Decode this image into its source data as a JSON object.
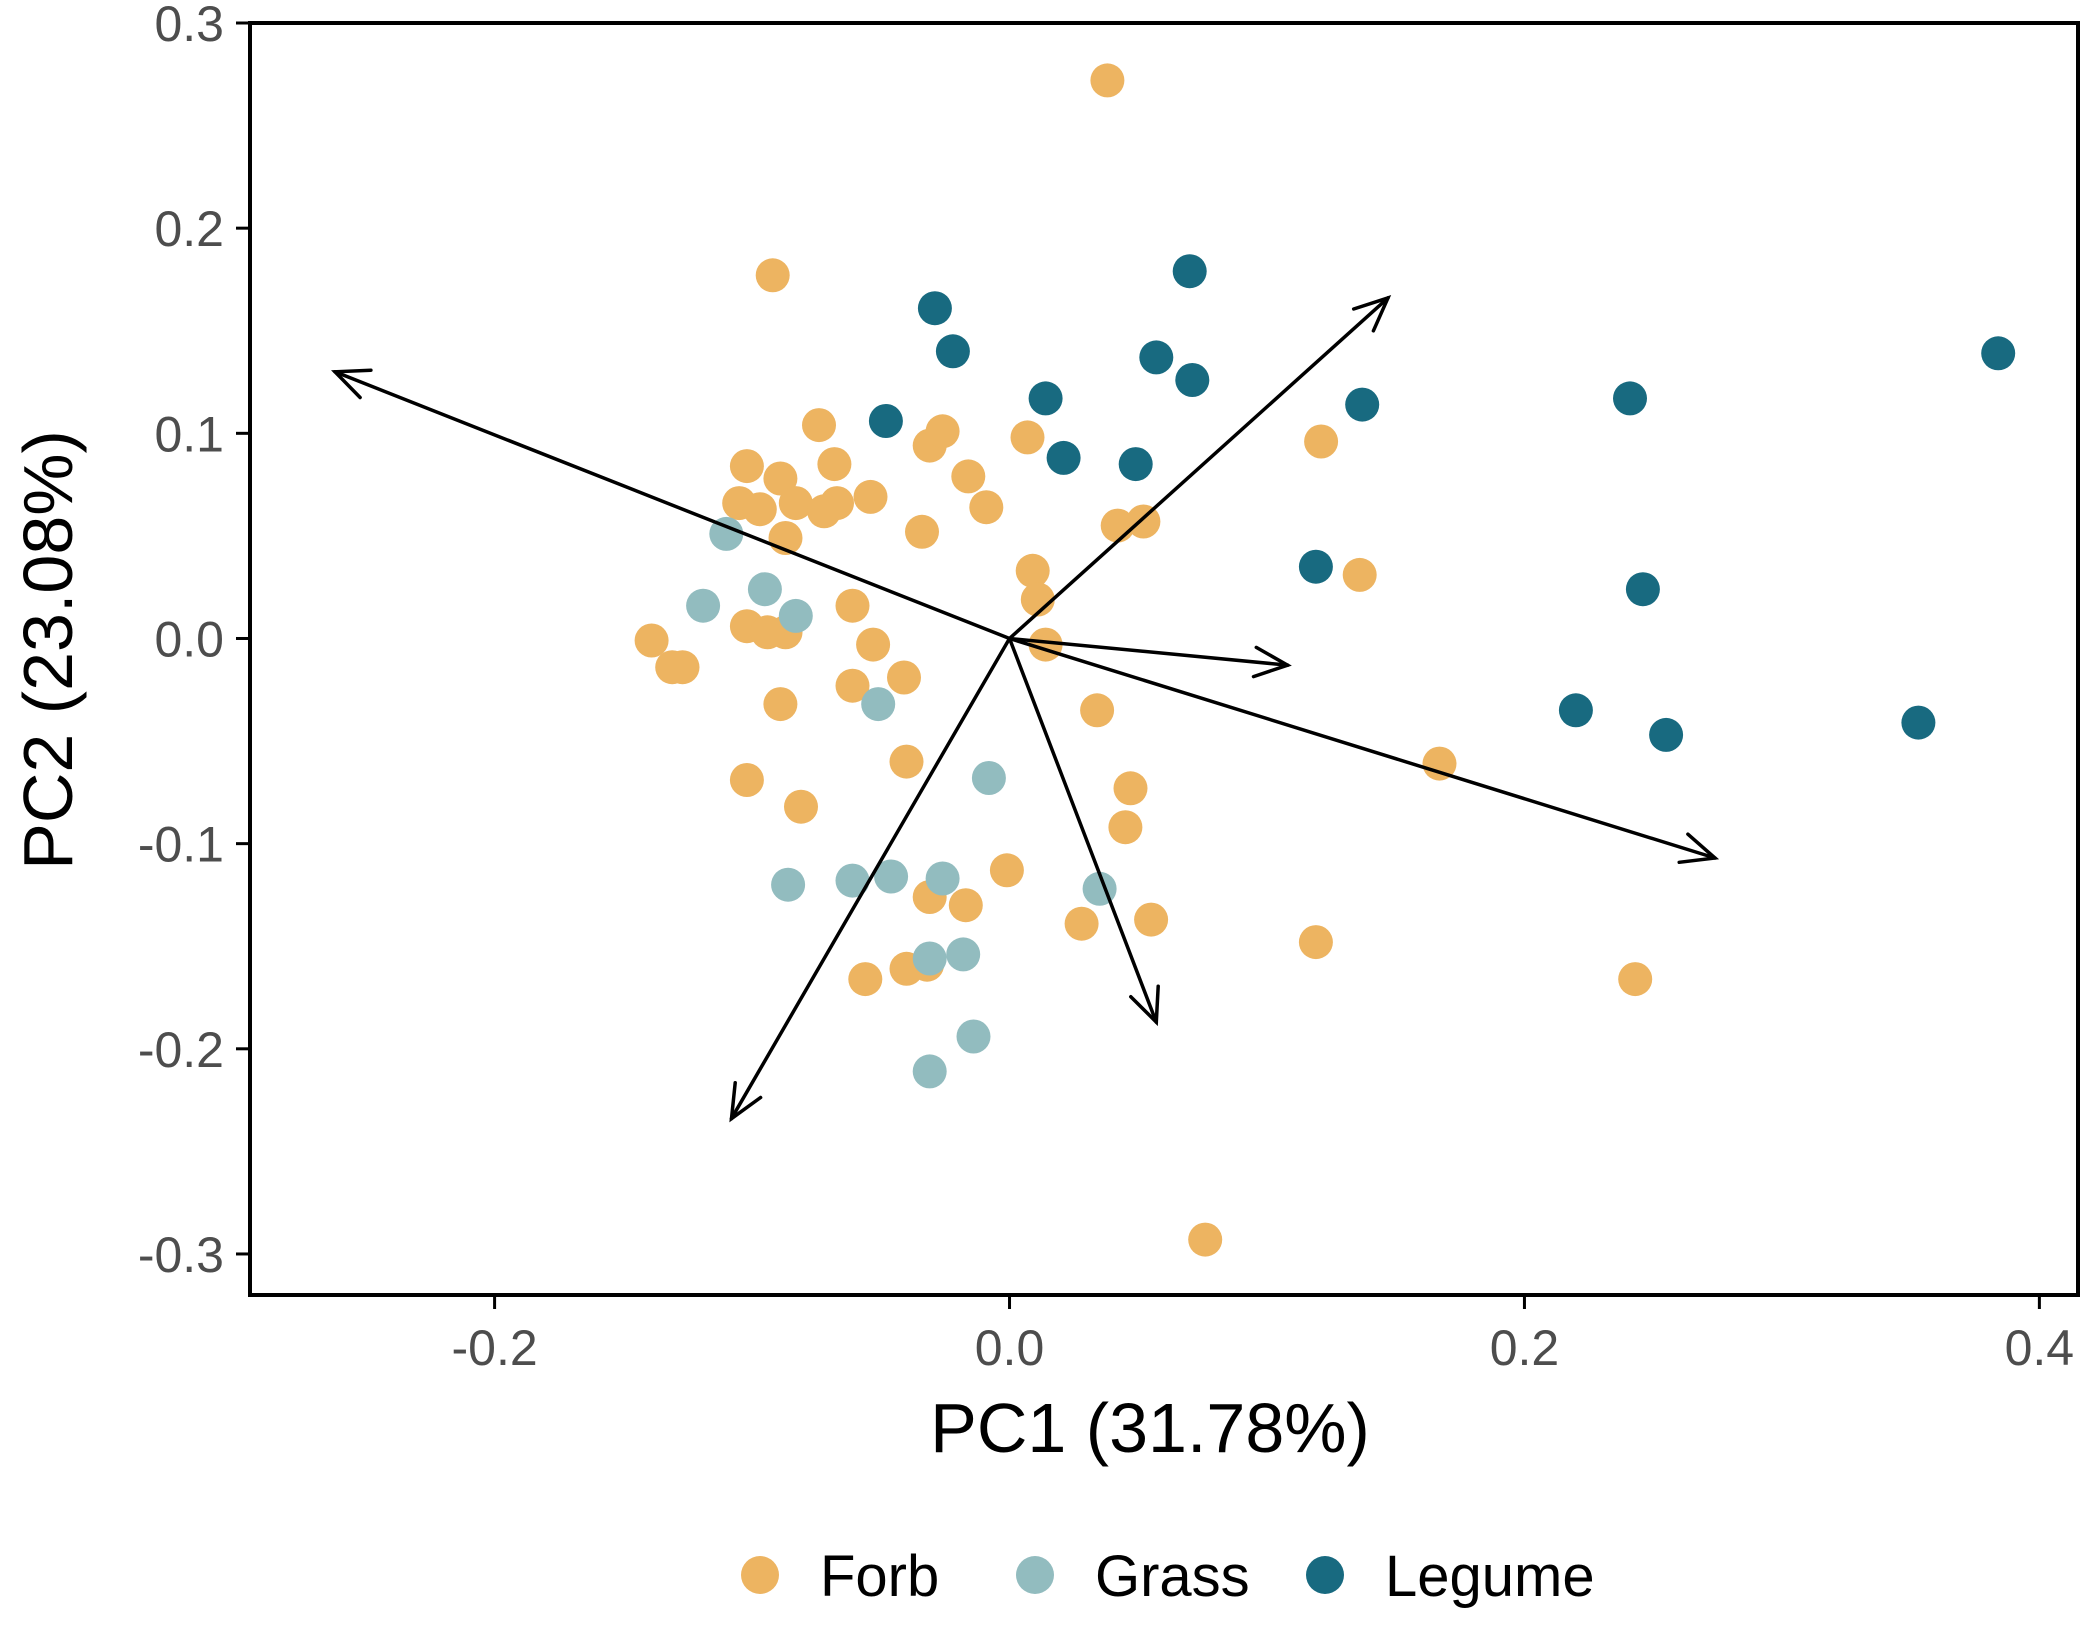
{
  "chart_data": {
    "type": "scatter",
    "xlabel": "PC1 (31.78%)",
    "ylabel": "PC2 (23.08%)",
    "xlim": [
      -0.295,
      0.415
    ],
    "ylim": [
      -0.32,
      0.3
    ],
    "x_ticks": [
      {
        "value": -0.2,
        "label": "-0.2"
      },
      {
        "value": 0.0,
        "label": "0.0"
      },
      {
        "value": 0.2,
        "label": "0.2"
      },
      {
        "value": 0.4,
        "label": "0.4"
      }
    ],
    "y_ticks": [
      {
        "value": 0.3,
        "label": "0.3"
      },
      {
        "value": 0.2,
        "label": "0.2"
      },
      {
        "value": 0.1,
        "label": "0.1"
      },
      {
        "value": 0.0,
        "label": "0.0"
      },
      {
        "value": -0.1,
        "label": "-0.1"
      },
      {
        "value": -0.2,
        "label": "-0.2"
      },
      {
        "value": -0.3,
        "label": "-0.3"
      }
    ],
    "grid": false,
    "legend_position": "bottom",
    "series": [
      {
        "name": "Forb",
        "color": "#EDB461",
        "points": [
          [
            0.038,
            0.272
          ],
          [
            -0.092,
            0.177
          ],
          [
            -0.074,
            0.104
          ],
          [
            -0.102,
            0.084
          ],
          [
            -0.089,
            0.078
          ],
          [
            -0.068,
            0.085
          ],
          [
            -0.031,
            0.094
          ],
          [
            -0.026,
            0.101
          ],
          [
            -0.016,
            0.079
          ],
          [
            -0.054,
            0.069
          ],
          [
            -0.067,
            0.066
          ],
          [
            -0.083,
            0.066
          ],
          [
            -0.105,
            0.066
          ],
          [
            -0.097,
            0.063
          ],
          [
            -0.072,
            0.062
          ],
          [
            -0.087,
            0.049
          ],
          [
            -0.034,
            0.052
          ],
          [
            -0.009,
            0.064
          ],
          [
            0.007,
            0.098
          ],
          [
            0.042,
            0.055
          ],
          [
            0.052,
            0.057
          ],
          [
            0.121,
            0.096
          ],
          [
            0.136,
            0.031
          ],
          [
            0.009,
            0.033
          ],
          [
            0.011,
            0.019
          ],
          [
            0.014,
            -0.003
          ],
          [
            -0.061,
            0.016
          ],
          [
            -0.053,
            -0.003
          ],
          [
            -0.102,
            0.006
          ],
          [
            -0.087,
            0.003
          ],
          [
            -0.094,
            0.003
          ],
          [
            -0.139,
            -0.001
          ],
          [
            -0.131,
            -0.014
          ],
          [
            -0.127,
            -0.014
          ],
          [
            -0.061,
            -0.023
          ],
          [
            -0.041,
            -0.019
          ],
          [
            -0.089,
            -0.032
          ],
          [
            0.034,
            -0.035
          ],
          [
            0.167,
            -0.061
          ],
          [
            -0.04,
            -0.06
          ],
          [
            -0.102,
            -0.069
          ],
          [
            -0.081,
            -0.082
          ],
          [
            0.047,
            -0.073
          ],
          [
            0.045,
            -0.092
          ],
          [
            -0.001,
            -0.113
          ],
          [
            -0.031,
            -0.126
          ],
          [
            -0.017,
            -0.13
          ],
          [
            0.028,
            -0.139
          ],
          [
            0.055,
            -0.137
          ],
          [
            0.119,
            -0.148
          ],
          [
            0.243,
            -0.166
          ],
          [
            -0.056,
            -0.166
          ],
          [
            -0.04,
            -0.161
          ],
          [
            -0.032,
            -0.159
          ],
          [
            0.076,
            -0.293
          ]
        ]
      },
      {
        "name": "Grass",
        "color": "#92BCBF",
        "points": [
          [
            -0.11,
            0.051
          ],
          [
            -0.095,
            0.024
          ],
          [
            -0.119,
            0.016
          ],
          [
            -0.083,
            0.011
          ],
          [
            -0.051,
            -0.032
          ],
          [
            -0.008,
            -0.068
          ],
          [
            -0.086,
            -0.12
          ],
          [
            -0.061,
            -0.118
          ],
          [
            -0.046,
            -0.116
          ],
          [
            -0.026,
            -0.117
          ],
          [
            0.035,
            -0.122
          ],
          [
            -0.031,
            -0.156
          ],
          [
            -0.018,
            -0.154
          ],
          [
            -0.014,
            -0.194
          ],
          [
            -0.031,
            -0.211
          ]
        ]
      },
      {
        "name": "Legume",
        "color": "#186A80",
        "points": [
          [
            -0.029,
            0.161
          ],
          [
            -0.022,
            0.14
          ],
          [
            0.07,
            0.179
          ],
          [
            0.057,
            0.137
          ],
          [
            0.071,
            0.126
          ],
          [
            0.014,
            0.117
          ],
          [
            -0.048,
            0.106
          ],
          [
            0.021,
            0.088
          ],
          [
            0.049,
            0.085
          ],
          [
            0.137,
            0.114
          ],
          [
            0.241,
            0.117
          ],
          [
            0.384,
            0.139
          ],
          [
            0.119,
            0.035
          ],
          [
            0.246,
            0.024
          ],
          [
            0.22,
            -0.035
          ],
          [
            0.255,
            -0.047
          ],
          [
            0.353,
            -0.041
          ]
        ]
      }
    ],
    "arrows": [
      {
        "x": -0.262,
        "y": 0.13
      },
      {
        "x": 0.147,
        "y": 0.166
      },
      {
        "x": 0.108,
        "y": -0.013
      },
      {
        "x": 0.274,
        "y": -0.107
      },
      {
        "x": 0.057,
        "y": -0.187
      },
      {
        "x": -0.108,
        "y": -0.234
      }
    ]
  }
}
